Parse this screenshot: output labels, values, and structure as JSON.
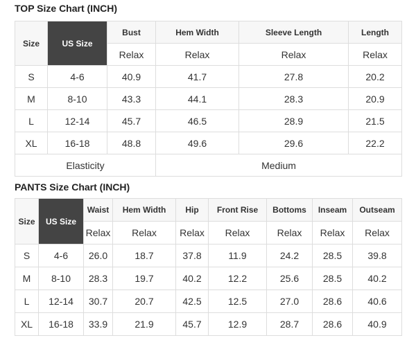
{
  "top": {
    "title": "TOP Size Chart (INCH)",
    "size_header": "Size",
    "us_header": "US Size",
    "columns": [
      "Bust",
      "Hem Width",
      "Sleeve Length",
      "Length"
    ],
    "sub": "Relax",
    "rows": [
      [
        "S",
        "4-6",
        "40.9",
        "41.7",
        "27.8",
        "20.2"
      ],
      [
        "M",
        "8-10",
        "43.3",
        "44.1",
        "28.3",
        "20.9"
      ],
      [
        "L",
        "12-14",
        "45.7",
        "46.5",
        "28.9",
        "21.5"
      ],
      [
        "XL",
        "16-18",
        "48.8",
        "49.6",
        "29.6",
        "22.2"
      ]
    ],
    "elasticity_label": "Elasticity",
    "elasticity_value": "Medium",
    "us_header_color": "#444444"
  },
  "pants": {
    "title": "PANTS Size Chart (INCH)",
    "size_header": "Size",
    "us_header": "US Size",
    "columns": [
      "Waist",
      "Hem Width",
      "Hip",
      "Front Rise",
      "Bottoms",
      "Inseam",
      "Outseam"
    ],
    "sub": "Relax",
    "rows": [
      [
        "S",
        "4-6",
        "26.0",
        "18.7",
        "37.8",
        "11.9",
        "24.2",
        "28.5",
        "39.8"
      ],
      [
        "M",
        "8-10",
        "28.3",
        "19.7",
        "40.2",
        "12.2",
        "25.6",
        "28.5",
        "40.2"
      ],
      [
        "L",
        "12-14",
        "30.7",
        "20.7",
        "42.5",
        "12.5",
        "27.0",
        "28.6",
        "40.6"
      ],
      [
        "XL",
        "16-18",
        "33.9",
        "21.9",
        "45.7",
        "12.9",
        "28.7",
        "28.6",
        "40.9"
      ]
    ]
  }
}
